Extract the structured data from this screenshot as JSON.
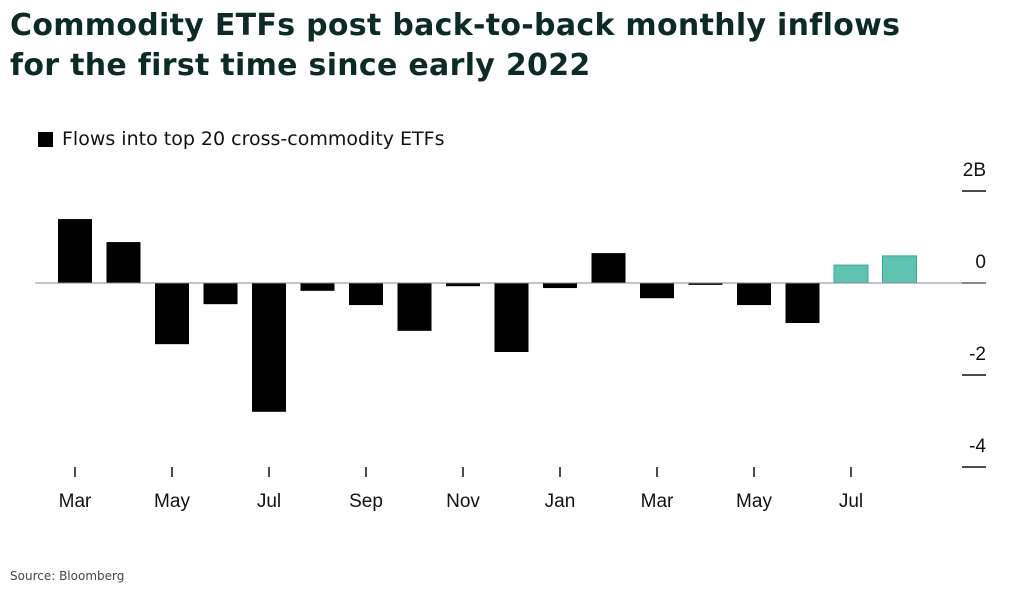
{
  "chart_data": {
    "type": "bar",
    "title": "Commodity ETFs post back-to-back monthly inflows for the first time since early 2022",
    "source": "Source: Bloomberg",
    "categories": [
      "Mar",
      null,
      "May",
      null,
      "Jul",
      null,
      "Sep",
      null,
      "Nov",
      null,
      "Jan",
      null,
      "Mar",
      null,
      "May",
      null,
      "Jul",
      null
    ],
    "series": [
      {
        "name": "Flows into top 20 cross-commodity ETFs",
        "values": [
          1.39,
          0.89,
          -1.33,
          -0.46,
          -2.8,
          -0.17,
          -0.48,
          -1.04,
          -0.07,
          -1.5,
          -0.11,
          0.65,
          -0.33,
          -0.04,
          -0.48,
          -0.87,
          0.39,
          0.59
        ],
        "colors": [
          "#000000",
          "#000000",
          "#000000",
          "#000000",
          "#000000",
          "#000000",
          "#000000",
          "#000000",
          "#000000",
          "#000000",
          "#000000",
          "#000000",
          "#000000",
          "#000000",
          "#000000",
          "#000000",
          "#5ec4b1",
          "#5ec4b1"
        ],
        "color": "#000000"
      }
    ],
    "ylim": [
      -4,
      2
    ],
    "yticks": [
      {
        "value": 2,
        "label": "2B"
      },
      0,
      -2,
      -4
    ],
    "legend": "top-left"
  }
}
